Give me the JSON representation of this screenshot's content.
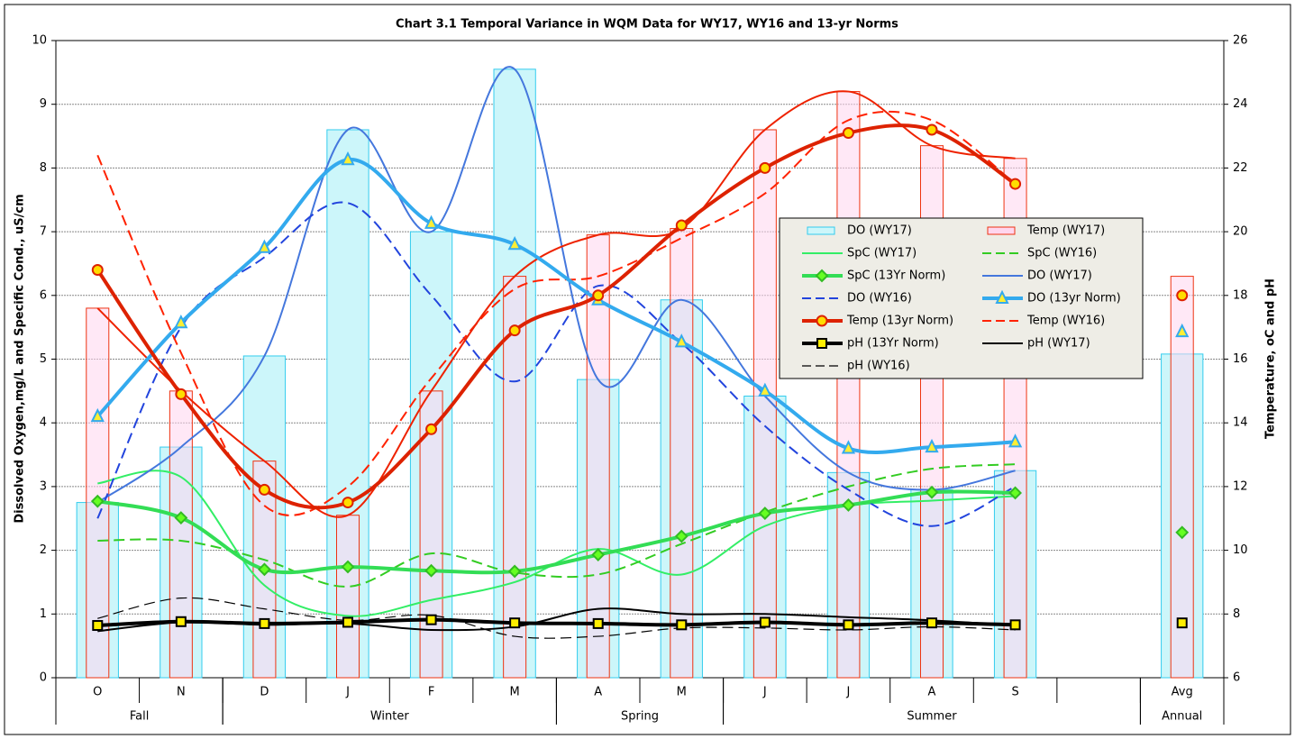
{
  "chart_data": {
    "type": "combo",
    "title": "Chart 3.1  Temporal Variance in WQM Data for WY17, WY16 and 13-yr Norms",
    "y_label": "Dissolved Oxygen,mg/L and Specific Cond., uS/cm",
    "y2_label": "Temperature, oC and pH",
    "categories": [
      "O",
      "N",
      "D",
      "J",
      "F",
      "M",
      "A",
      "M",
      "J",
      "J",
      "A",
      "S",
      null,
      "Avg"
    ],
    "groups": [
      {
        "label": "Fall",
        "count": 2
      },
      {
        "label": "Winter",
        "count": 4
      },
      {
        "label": "Spring",
        "count": 2
      },
      {
        "label": "Summer",
        "count": 5
      },
      {
        "label": "Annual",
        "count": 1
      }
    ],
    "ylim": [
      0,
      10
    ],
    "yticks": [
      0,
      1,
      2,
      3,
      4,
      5,
      6,
      7,
      8,
      9,
      10
    ],
    "y2lim": [
      6,
      26
    ],
    "y2ticks": [
      6,
      8,
      10,
      12,
      14,
      16,
      18,
      20,
      22,
      24,
      26
    ],
    "grid": true,
    "legend": "right",
    "series": [
      {
        "name": "DO (WY17)",
        "type": "bar",
        "color": "#33ccee",
        "fill": "#ccf6fa",
        "values": [
          2.75,
          3.62,
          5.05,
          8.6,
          7.0,
          9.55,
          4.68,
          5.93,
          4.42,
          3.22,
          2.95,
          3.25,
          null,
          5.08
        ]
      },
      {
        "name": "Temp (WY17)",
        "type": "bar",
        "axis": "y2",
        "color": "#ee3311",
        "fill": "#ffd6ee",
        "values": [
          17.6,
          15.0,
          12.8,
          11.1,
          15.0,
          18.6,
          19.9,
          20.1,
          23.2,
          24.4,
          22.7,
          22.3,
          null,
          18.6
        ]
      },
      {
        "name": "SpC (WY17)",
        "type": "line",
        "color": "#33ee66",
        "style": "solid",
        "weight": "medium",
        "values": [
          3.05,
          3.15,
          1.45,
          0.97,
          1.22,
          1.5,
          2.02,
          1.62,
          2.38,
          2.7,
          2.78,
          2.85,
          null,
          null
        ]
      },
      {
        "name": "SpC (WY16)",
        "type": "line",
        "color": "#33cc22",
        "style": "dashed",
        "weight": "medium",
        "values": [
          2.15,
          2.15,
          1.85,
          1.43,
          1.95,
          1.65,
          1.62,
          2.1,
          2.6,
          3.0,
          3.28,
          3.35,
          null,
          null
        ]
      },
      {
        "name": "SpC (13Yr Norm)",
        "type": "line",
        "color": "#33dd55",
        "style": "solid",
        "weight": "thick",
        "marker": "diamond",
        "marker_color": "#66ff22",
        "values": [
          2.77,
          2.51,
          1.7,
          1.74,
          1.68,
          1.67,
          1.93,
          2.22,
          2.58,
          2.71,
          2.91,
          2.9,
          null,
          2.28
        ]
      },
      {
        "name": "DO (WY17)",
        "type": "line",
        "color": "#4477dd",
        "style": "solid",
        "weight": "medium",
        "values": [
          2.75,
          3.62,
          5.05,
          8.6,
          7.0,
          9.55,
          4.68,
          5.93,
          4.42,
          3.22,
          2.95,
          3.25,
          null,
          null
        ]
      },
      {
        "name": "DO (WY16)",
        "type": "line",
        "color": "#2244dd",
        "style": "dashed",
        "weight": "medium",
        "values": [
          2.5,
          5.5,
          6.6,
          7.45,
          6.0,
          4.65,
          6.15,
          5.25,
          3.95,
          2.95,
          2.38,
          3.0,
          null,
          null
        ]
      },
      {
        "name": "DO (13yr Norm)",
        "type": "line",
        "color": "#33aaee",
        "style": "solid",
        "weight": "thick",
        "marker": "triangle",
        "marker_color": "#ffee33",
        "values": [
          4.1,
          5.57,
          6.75,
          8.13,
          7.13,
          6.8,
          5.93,
          5.27,
          4.5,
          3.6,
          3.62,
          3.7,
          null,
          5.43
        ]
      },
      {
        "name": "Temp (13yr Norm)",
        "type": "line",
        "axis": "y2",
        "color": "#dd2200",
        "style": "solid",
        "weight": "thick",
        "marker": "circle",
        "marker_color": "#ffdd00",
        "values": [
          18.8,
          14.9,
          11.9,
          11.5,
          13.8,
          16.9,
          18.0,
          20.2,
          22.0,
          23.1,
          23.2,
          21.5,
          null,
          18.0
        ]
      },
      {
        "name": "Temp (WY16)",
        "type": "line",
        "axis": "y2",
        "color": "#ff2200",
        "style": "dashed",
        "weight": "medium",
        "values": [
          22.4,
          16.2,
          11.4,
          12.0,
          15.4,
          18.2,
          18.6,
          19.8,
          21.2,
          23.5,
          23.5,
          21.5,
          null,
          null
        ]
      },
      {
        "name": "pH (13Yr Norm)",
        "type": "line",
        "axis": "y2",
        "color": "#000000",
        "style": "solid",
        "weight": "thick",
        "marker": "square",
        "marker_color": "#ffee00",
        "values": [
          7.64,
          7.76,
          7.7,
          7.74,
          7.82,
          7.72,
          7.7,
          7.66,
          7.74,
          7.66,
          7.72,
          7.66,
          null,
          7.72
        ]
      },
      {
        "name": "pH (WY17)",
        "type": "line",
        "axis": "y2",
        "color": "#000000",
        "style": "solid",
        "weight": "medium",
        "values": [
          7.46,
          7.74,
          7.66,
          7.7,
          7.5,
          7.6,
          8.16,
          8.0,
          8.0,
          7.9,
          7.8,
          7.64,
          null,
          null
        ]
      },
      {
        "name": "pH (WY16)",
        "type": "line",
        "axis": "y2",
        "color": "#000000",
        "style": "dashed",
        "weight": "thin",
        "values": [
          7.86,
          8.5,
          8.16,
          7.8,
          7.96,
          7.3,
          7.3,
          7.56,
          7.56,
          7.5,
          7.6,
          7.5,
          null,
          null
        ]
      },
      {
        "type": "line",
        "axis": "y2",
        "color": "#ee2200",
        "style": "solid",
        "weight": "medium",
        "values": [
          17.6,
          15.0,
          12.8,
          11.1,
          15.0,
          18.6,
          19.9,
          20.1,
          23.2,
          24.4,
          22.7,
          22.3,
          null,
          null
        ]
      }
    ]
  }
}
